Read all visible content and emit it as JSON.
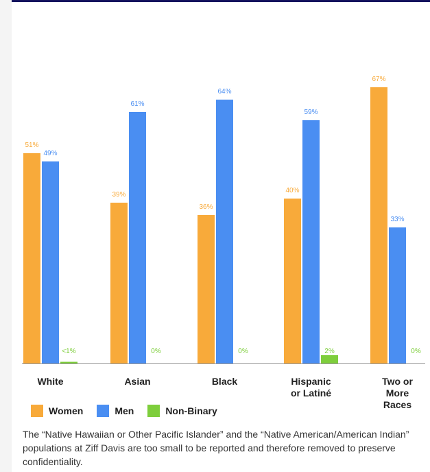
{
  "colors": {
    "women": "#f8aa3a",
    "men": "#4a8ef2",
    "nonbinary": "#7ece3c",
    "frame": "#14135e"
  },
  "chart_data": {
    "type": "bar",
    "title": "",
    "xlabel": "",
    "ylabel": "",
    "ylim": [
      0,
      70
    ],
    "categories": [
      "White",
      "Asian",
      "Black",
      "Hispanic or Latiné",
      "Two or More Races"
    ],
    "category_lines": [
      [
        "White"
      ],
      [
        "Asian"
      ],
      [
        "Black"
      ],
      [
        "Hispanic",
        "or Latiné"
      ],
      [
        "Two or",
        "More",
        "Races"
      ]
    ],
    "series": [
      {
        "name": "Women",
        "values": [
          51,
          39,
          36,
          40,
          67
        ],
        "labels": [
          "51%",
          "39%",
          "36%",
          "40%",
          "67%"
        ]
      },
      {
        "name": "Men",
        "values": [
          49,
          61,
          64,
          59,
          33
        ],
        "labels": [
          "49%",
          "61%",
          "64%",
          "59%",
          "33%"
        ]
      },
      {
        "name": "Non-Binary",
        "values": [
          0.4,
          0,
          0,
          2,
          0
        ],
        "labels": [
          "<1%",
          "0%",
          "0%",
          "2%",
          "0%"
        ]
      }
    ],
    "legend": "bottom-left",
    "grid": false
  },
  "legend_labels": [
    "Women",
    "Men",
    "Non-Binary"
  ],
  "note": "The “Native Hawaiian or Other Pacific Islander” and the “Native American/American Indian” populations at Ziff Davis are too small to be reported and therefore removed to preserve confidentiality."
}
